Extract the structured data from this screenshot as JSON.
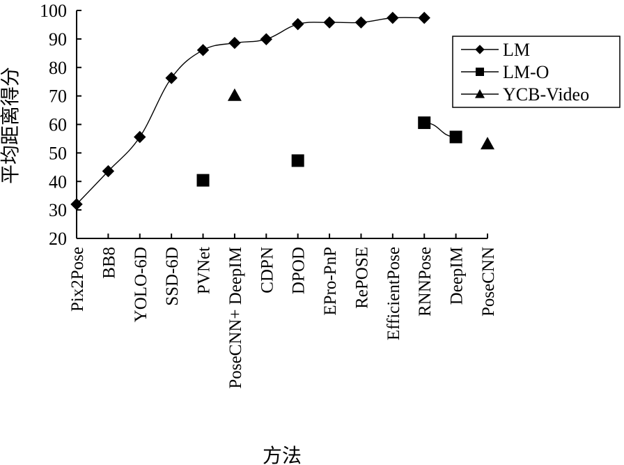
{
  "chart_data": {
    "type": "line",
    "title": "",
    "xlabel": "方法",
    "ylabel": "平均距离得分",
    "ylim": [
      20,
      100
    ],
    "yticks": [
      20,
      30,
      40,
      50,
      60,
      70,
      80,
      90,
      100
    ],
    "categories": [
      "Pix2Pose",
      "BB8",
      "YOLO-6D",
      "SSD-6D",
      "PVNet",
      "PoseCNN+ DeepIM",
      "CDPN",
      "DPOD",
      "EPro-PnP",
      "RePOSE",
      "EfficientPose",
      "RNNPose",
      "DeepIM",
      "PoseCNN"
    ],
    "grid": false,
    "legend_position": "top-right",
    "series": [
      {
        "name": "LM",
        "marker": "diamond",
        "color": "#000000",
        "smooth_line": true,
        "values": [
          32,
          43.6,
          55.6,
          76.3,
          86.1,
          88.6,
          89.9,
          95.2,
          95.8,
          95.8,
          97.4,
          97.4,
          null,
          null
        ]
      },
      {
        "name": "LM-O",
        "marker": "square",
        "color": "#000000",
        "line_segment": [
          11,
          12
        ],
        "values": [
          null,
          null,
          null,
          null,
          40.4,
          null,
          null,
          47.3,
          null,
          null,
          null,
          60.6,
          55.6,
          null
        ]
      },
      {
        "name": "YCB-Video",
        "marker": "triangle",
        "color": "#000000",
        "values": [
          null,
          null,
          null,
          null,
          null,
          70.2,
          null,
          null,
          null,
          null,
          null,
          null,
          null,
          53.2
        ]
      }
    ]
  }
}
